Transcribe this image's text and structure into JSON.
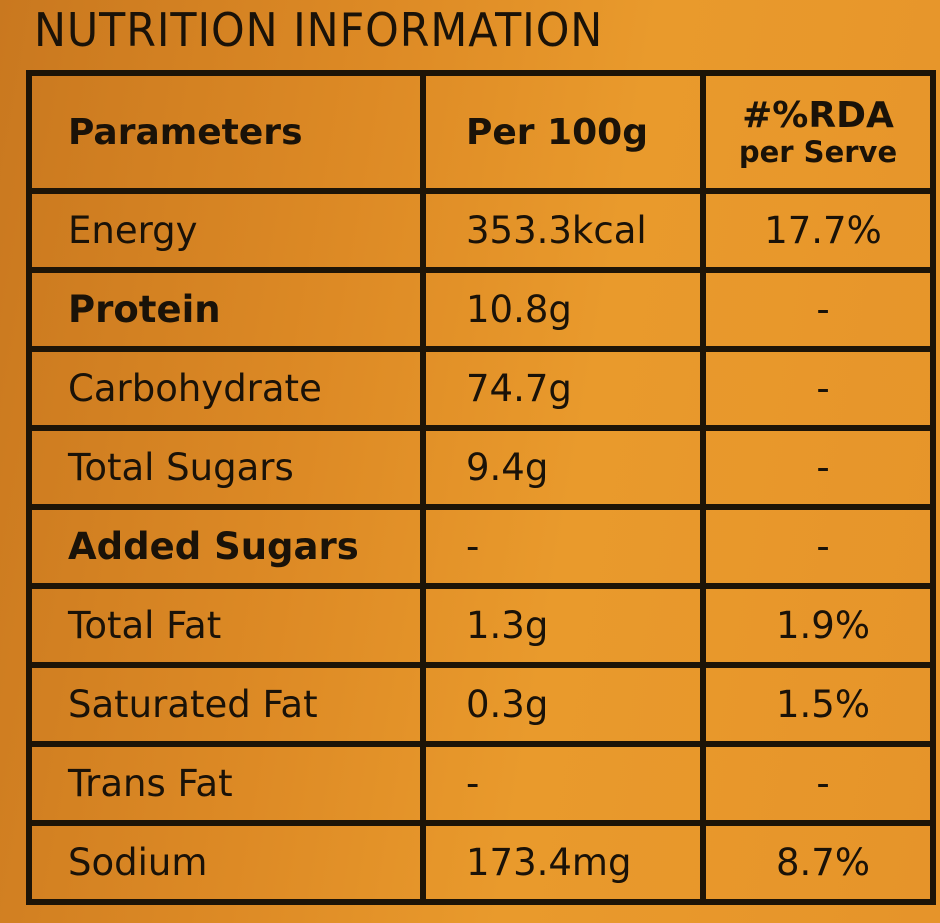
{
  "title": "NUTRITION INFORMATION",
  "table": {
    "headers": {
      "parameters": "Parameters",
      "per100g": "Per 100g",
      "rda_top": "#%RDA",
      "rda_sub": "per Serve"
    },
    "rows": [
      {
        "name": "Energy",
        "per100g": "353.3kcal",
        "rda": "17.7%"
      },
      {
        "name": "Protein",
        "per100g": "10.8g",
        "rda": "-"
      },
      {
        "name": "Carbohydrate",
        "per100g": "74.7g",
        "rda": "-"
      },
      {
        "name": "Total Sugars",
        "per100g": "9.4g",
        "rda": "-"
      },
      {
        "name": "Added Sugars",
        "per100g": "-",
        "rda": "-"
      },
      {
        "name": "Total Fat",
        "per100g": "1.3g",
        "rda": "1.9%"
      },
      {
        "name": "Saturated Fat",
        "per100g": "0.3g",
        "rda": "1.5%"
      },
      {
        "name": "Trans Fat",
        "per100g": "-",
        "rda": "-"
      },
      {
        "name": "Sodium",
        "per100g": "173.4mg",
        "rda": "8.7%"
      }
    ]
  },
  "colors": {
    "background": "#e0902a",
    "ink": "#1d1407"
  }
}
